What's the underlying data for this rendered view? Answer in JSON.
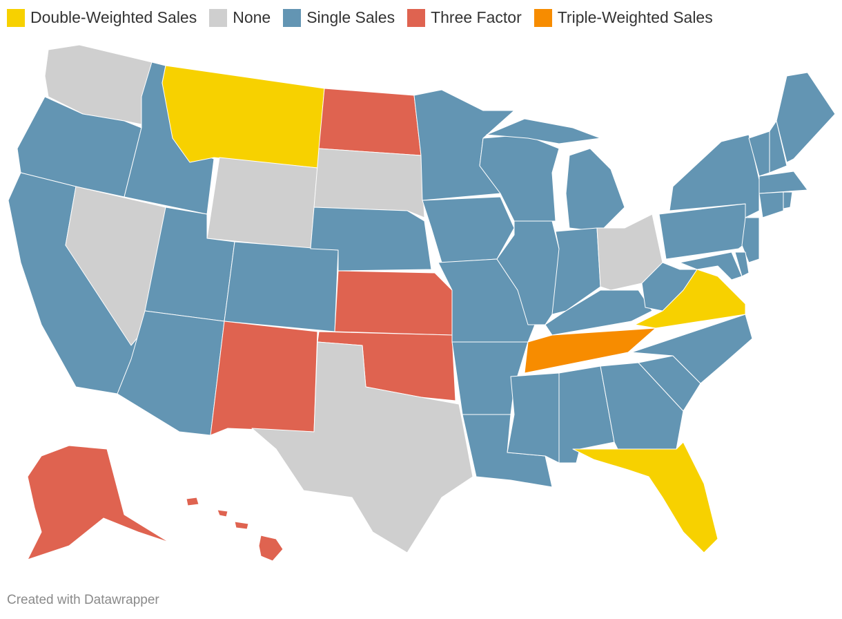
{
  "map": {
    "legend": [
      {
        "label": "Double-Weighted Sales",
        "color": "#f7d100"
      },
      {
        "label": "None",
        "color": "#cfcfcf"
      },
      {
        "label": "Single Sales",
        "color": "#6395b3"
      },
      {
        "label": "Three Factor",
        "color": "#df6350"
      },
      {
        "label": "Triple-Weighted Sales",
        "color": "#f78c00"
      }
    ],
    "regions": [
      1,
      2,
      2,
      1,
      2,
      0,
      1,
      2,
      2,
      2,
      3,
      3,
      1,
      2,
      3,
      3,
      1,
      2,
      2,
      2,
      2,
      2,
      2,
      2,
      2,
      2,
      1,
      2,
      4,
      2,
      2,
      2,
      0,
      2,
      2,
      0,
      2,
      2,
      2,
      2,
      2,
      2,
      2,
      2,
      2,
      2,
      2,
      2,
      3,
      3
    ],
    "footer": "Created with Datawrapper"
  }
}
